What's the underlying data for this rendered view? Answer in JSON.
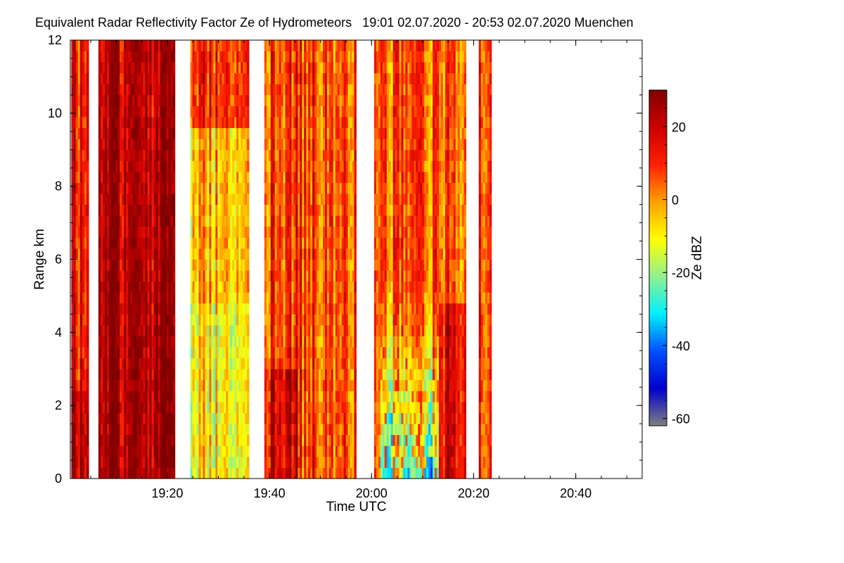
{
  "chart_data": {
    "type": "heatmap",
    "title": "Equivalent Radar Reflectivity Factor Ze of Hydrometeors   19:01 02.07.2020 - 20:53 02.07.2020 Muenchen",
    "xlabel": "Time UTC",
    "ylabel": "Range km",
    "x_range_minutes_utc": [
      1141,
      1253
    ],
    "x_ticks": [
      {
        "label": "19:20",
        "minutes": 1160
      },
      {
        "label": "19:40",
        "minutes": 1180
      },
      {
        "label": "20:00",
        "minutes": 1200
      },
      {
        "label": "20:20",
        "minutes": 1220
      },
      {
        "label": "20:40",
        "minutes": 1240
      }
    ],
    "ylim": [
      0,
      12
    ],
    "y_ticks": [
      0,
      2,
      4,
      6,
      8,
      10,
      12
    ],
    "colorbar": {
      "label": "Ze dBZ",
      "range": [
        -62,
        30
      ],
      "ticks": [
        20,
        0,
        -20,
        -40,
        -60
      ],
      "tick_labels": [
        "20",
        "0",
        "-20",
        "-40",
        "-60"
      ],
      "colors": [
        "#7f7f7f",
        "#0000cc",
        "#0050ff",
        "#00f0ff",
        "#90f090",
        "#ffff00",
        "#ffa000",
        "#ff2000",
        "#cc0000",
        "#800000"
      ]
    },
    "data_segments": [
      {
        "start_minutes": 1141.2,
        "end_minutes": 1144.6,
        "regime": "strong",
        "mean_dbz": 15
      },
      {
        "start_minutes": 1146.5,
        "end_minutes": 1161.5,
        "regime": "very_strong",
        "mean_dbz": 20
      },
      {
        "start_minutes": 1164.5,
        "end_minutes": 1176.0,
        "regime": "mixed_weak",
        "mean_dbz": -3
      },
      {
        "start_minutes": 1179.0,
        "end_minutes": 1197.0,
        "regime": "strong_mixed",
        "mean_dbz": 8
      },
      {
        "start_minutes": 1200.5,
        "end_minutes": 1218.5,
        "regime": "convective_mixed",
        "mean_dbz": 5
      },
      {
        "start_minutes": 1221.0,
        "end_minutes": 1223.5,
        "regime": "moderate",
        "mean_dbz": 10
      }
    ]
  }
}
